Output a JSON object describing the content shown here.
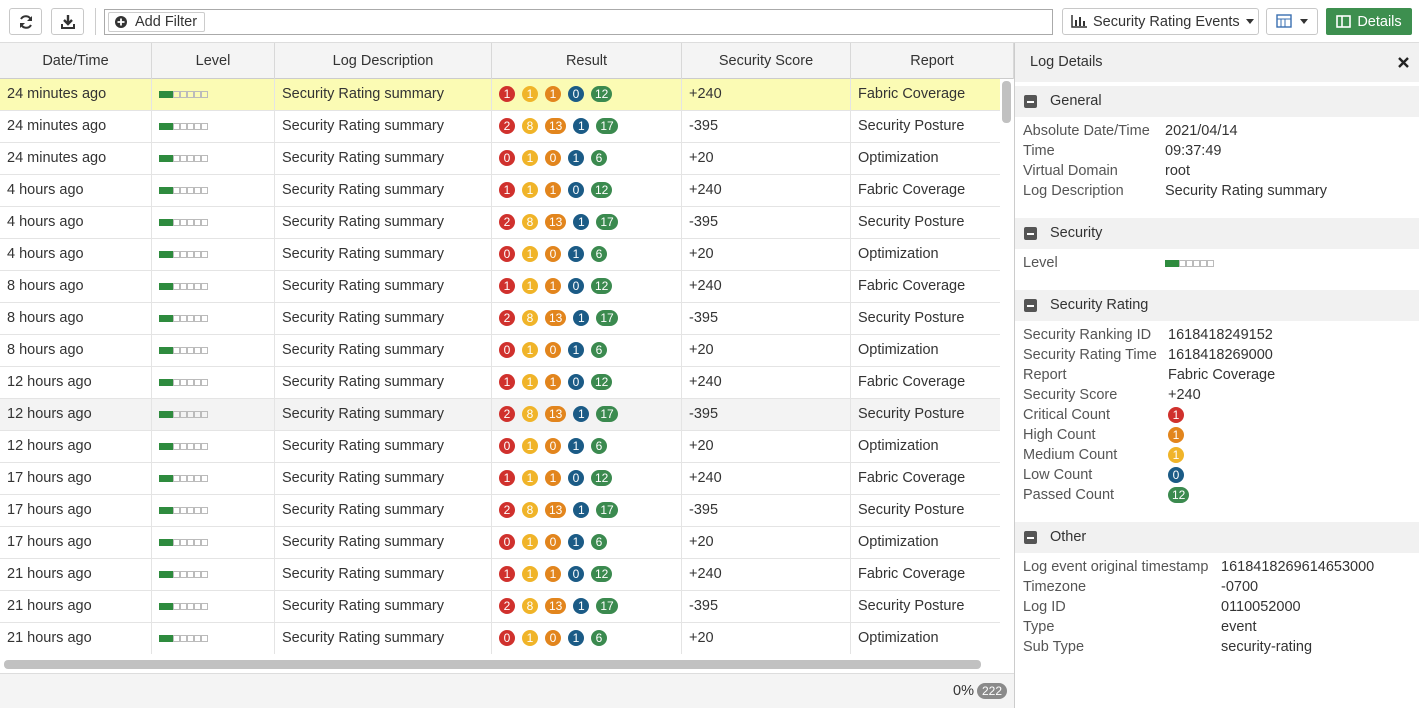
{
  "toolbar": {
    "add_filter": "Add Filter",
    "view": "Security Rating Events",
    "details": "Details"
  },
  "table": {
    "columns": [
      "Date/Time",
      "Level",
      "Log Description",
      "Result",
      "Security Score",
      "Report"
    ],
    "result_colors": [
      "#d0312d",
      "#f0b429",
      "#e2851d",
      "#1b5b86",
      "#3b8a4f"
    ],
    "rows": [
      {
        "time": "24 minutes ago",
        "description": "Security Rating summary",
        "result": [
          1,
          1,
          1,
          0,
          12
        ],
        "score": "+240",
        "report": "Fabric Coverage"
      },
      {
        "time": "24 minutes ago",
        "description": "Security Rating summary",
        "result": [
          2,
          8,
          13,
          1,
          17
        ],
        "score": "-395",
        "report": "Security Posture"
      },
      {
        "time": "24 minutes ago",
        "description": "Security Rating summary",
        "result": [
          0,
          1,
          0,
          1,
          6
        ],
        "score": "+20",
        "report": "Optimization"
      },
      {
        "time": "4 hours ago",
        "description": "Security Rating summary",
        "result": [
          1,
          1,
          1,
          0,
          12
        ],
        "score": "+240",
        "report": "Fabric Coverage"
      },
      {
        "time": "4 hours ago",
        "description": "Security Rating summary",
        "result": [
          2,
          8,
          13,
          1,
          17
        ],
        "score": "-395",
        "report": "Security Posture"
      },
      {
        "time": "4 hours ago",
        "description": "Security Rating summary",
        "result": [
          0,
          1,
          0,
          1,
          6
        ],
        "score": "+20",
        "report": "Optimization"
      },
      {
        "time": "8 hours ago",
        "description": "Security Rating summary",
        "result": [
          1,
          1,
          1,
          0,
          12
        ],
        "score": "+240",
        "report": "Fabric Coverage"
      },
      {
        "time": "8 hours ago",
        "description": "Security Rating summary",
        "result": [
          2,
          8,
          13,
          1,
          17
        ],
        "score": "-395",
        "report": "Security Posture"
      },
      {
        "time": "8 hours ago",
        "description": "Security Rating summary",
        "result": [
          0,
          1,
          0,
          1,
          6
        ],
        "score": "+20",
        "report": "Optimization"
      },
      {
        "time": "12 hours ago",
        "description": "Security Rating summary",
        "result": [
          1,
          1,
          1,
          0,
          12
        ],
        "score": "+240",
        "report": "Fabric Coverage"
      },
      {
        "time": "12 hours ago",
        "description": "Security Rating summary",
        "result": [
          2,
          8,
          13,
          1,
          17
        ],
        "score": "-395",
        "report": "Security Posture"
      },
      {
        "time": "12 hours ago",
        "description": "Security Rating summary",
        "result": [
          0,
          1,
          0,
          1,
          6
        ],
        "score": "+20",
        "report": "Optimization"
      },
      {
        "time": "17 hours ago",
        "description": "Security Rating summary",
        "result": [
          1,
          1,
          1,
          0,
          12
        ],
        "score": "+240",
        "report": "Fabric Coverage"
      },
      {
        "time": "17 hours ago",
        "description": "Security Rating summary",
        "result": [
          2,
          8,
          13,
          1,
          17
        ],
        "score": "-395",
        "report": "Security Posture"
      },
      {
        "time": "17 hours ago",
        "description": "Security Rating summary",
        "result": [
          0,
          1,
          0,
          1,
          6
        ],
        "score": "+20",
        "report": "Optimization"
      },
      {
        "time": "21 hours ago",
        "description": "Security Rating summary",
        "result": [
          1,
          1,
          1,
          0,
          12
        ],
        "score": "+240",
        "report": "Fabric Coverage"
      },
      {
        "time": "21 hours ago",
        "description": "Security Rating summary",
        "result": [
          2,
          8,
          13,
          1,
          17
        ],
        "score": "-395",
        "report": "Security Posture"
      },
      {
        "time": "21 hours ago",
        "description": "Security Rating summary",
        "result": [
          0,
          1,
          0,
          1,
          6
        ],
        "score": "+20",
        "report": "Optimization"
      }
    ]
  },
  "footer": {
    "progress": "0%",
    "count": 222
  },
  "details": {
    "title": "Log Details",
    "sections": [
      {
        "title": "General",
        "items": [
          {
            "key": "Absolute Date/Time",
            "value": "2021/04/14"
          },
          {
            "key": "Time",
            "value": "09:37:49"
          },
          {
            "key": "Virtual Domain",
            "value": "root"
          },
          {
            "key": "Log Description",
            "value": "Security Rating summary"
          }
        ]
      },
      {
        "title": "Security",
        "items": [
          {
            "key": "Level"
          }
        ]
      },
      {
        "title": "Security Rating",
        "items": [
          {
            "key": "Security Ranking ID",
            "value": "1618418249152"
          },
          {
            "key": "Security Rating Time",
            "value": "1618418269000"
          },
          {
            "key": "Report",
            "value": "Fabric Coverage"
          },
          {
            "key": "Security Score",
            "value": "+240"
          },
          {
            "key": "Critical Count",
            "value": 1,
            "color": "#d0312d"
          },
          {
            "key": "High Count",
            "value": 1,
            "color": "#e2851d"
          },
          {
            "key": "Medium Count",
            "value": 1,
            "color": "#f0b429"
          },
          {
            "key": "Low Count",
            "value": 0,
            "color": "#1b5b86"
          },
          {
            "key": "Passed Count",
            "value": 12,
            "color": "#3b8a4f"
          }
        ]
      },
      {
        "title": "Other",
        "items": [
          {
            "key": "Log event original timestamp",
            "value": "1618418269614653000"
          },
          {
            "key": "Timezone",
            "value": "-0700"
          },
          {
            "key": "Log ID",
            "value": "0110052000"
          },
          {
            "key": "Type",
            "value": "event"
          },
          {
            "key": "Sub Type",
            "value": "security-rating"
          }
        ]
      }
    ]
  }
}
